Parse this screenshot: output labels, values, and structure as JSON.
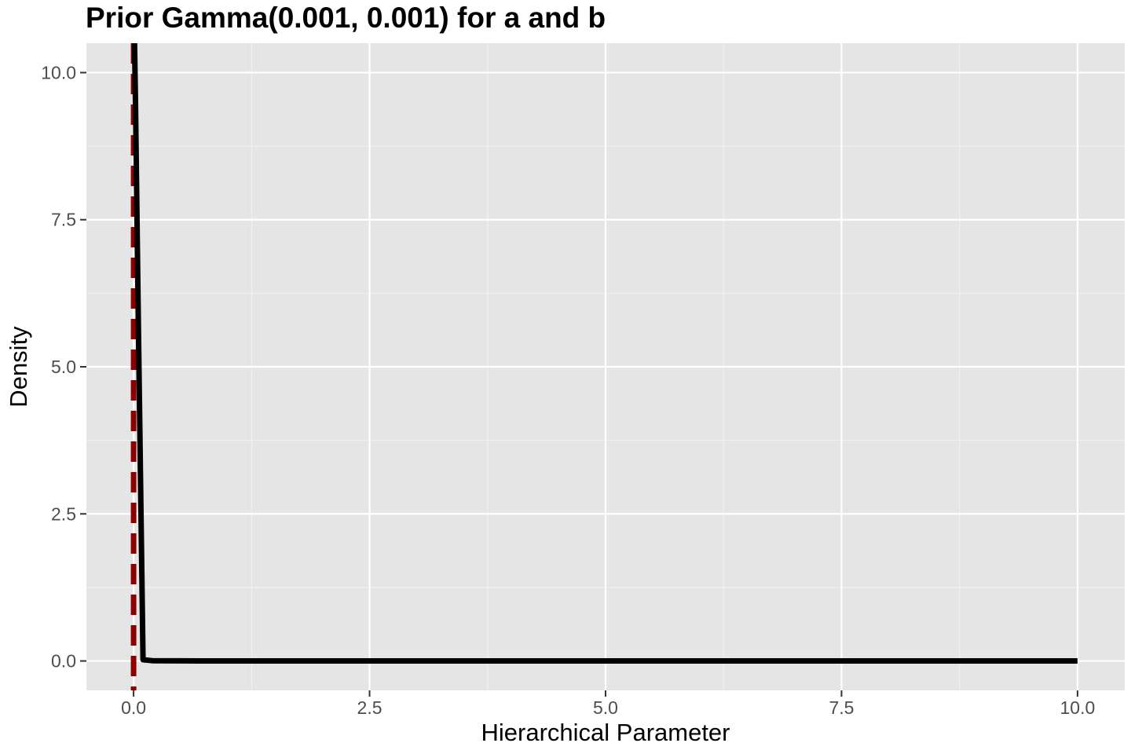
{
  "chart_data": {
    "type": "line",
    "title": "Prior Gamma(0.001, 0.001) for a and b",
    "xlabel": "Hierarchical Parameter",
    "ylabel": "Density",
    "xlim": [
      -0.5,
      10.5
    ],
    "ylim": [
      -0.5,
      10.5
    ],
    "x_ticks": [
      0.0,
      2.5,
      5.0,
      7.5,
      10.0
    ],
    "x_tick_labels": [
      "0.0",
      "2.5",
      "5.0",
      "7.5",
      "10.0"
    ],
    "y_ticks": [
      0.0,
      2.5,
      5.0,
      7.5,
      10.0
    ],
    "y_tick_labels": [
      "0.0",
      "2.5",
      "5.0",
      "7.5",
      "10.0"
    ],
    "grid": true,
    "background": "#e5e5e5",
    "series": [
      {
        "color": "#000000",
        "x": [
          0.01,
          0.02,
          0.05,
          0.1,
          0.2,
          0.5,
          1,
          2,
          3,
          4,
          5,
          6,
          7,
          8,
          9,
          10
        ],
        "y": [
          10.5,
          9.5,
          5.8,
          0.02,
          0.005,
          0.002,
          0.001,
          0.0005,
          0.0003,
          0.00025,
          0.0002,
          0.00017,
          0.00014,
          0.00012,
          0.00011,
          0.0001
        ]
      }
    ],
    "reference_lines": [
      {
        "orientation": "vertical",
        "x": 0.0,
        "color": "#8b0000",
        "style": "dashed"
      }
    ]
  }
}
